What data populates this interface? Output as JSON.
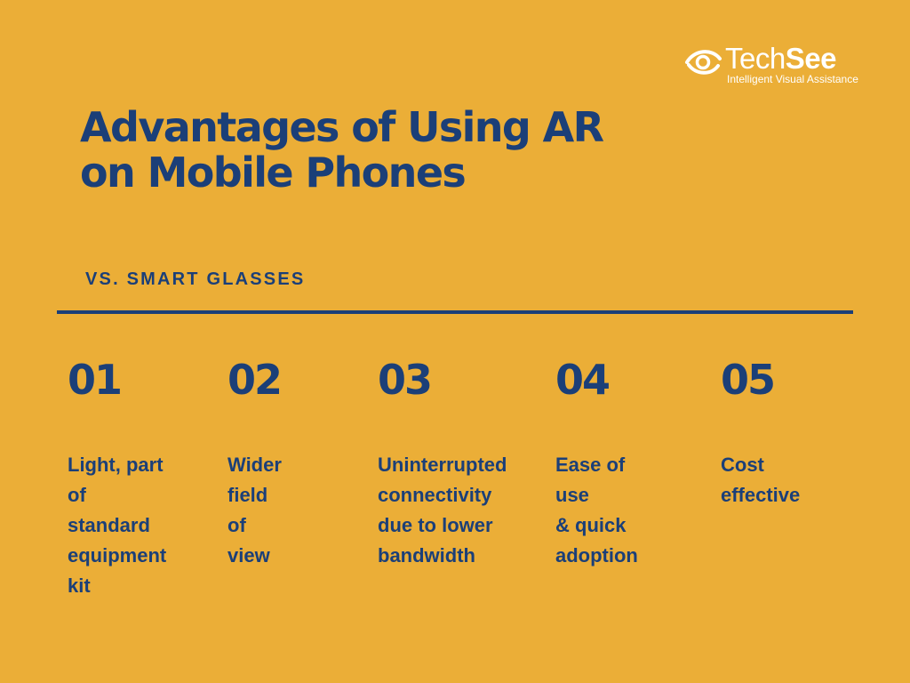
{
  "brand": {
    "name_light": "Tech",
    "name_bold": "See",
    "tagline": "Intelligent Visual Assistance"
  },
  "title": {
    "line1": "Advantages of Using AR",
    "line2": "on Mobile Phones"
  },
  "subtitle": "VS. SMART GLASSES",
  "items": [
    {
      "number": "01",
      "text": "Light, part\nof standard\nequipment\nkit"
    },
    {
      "number": "02",
      "text": "Wider field\nof view"
    },
    {
      "number": "03",
      "text": "Uninterrupted\nconnectivity\ndue to lower\nbandwidth"
    },
    {
      "number": "04",
      "text": "Ease of use\n& quick\nadoption"
    },
    {
      "number": "05",
      "text": "Cost\neffective"
    }
  ],
  "colors": {
    "background": "#EBAE37",
    "primary": "#1B3F78",
    "logo": "#FFFFFF"
  }
}
